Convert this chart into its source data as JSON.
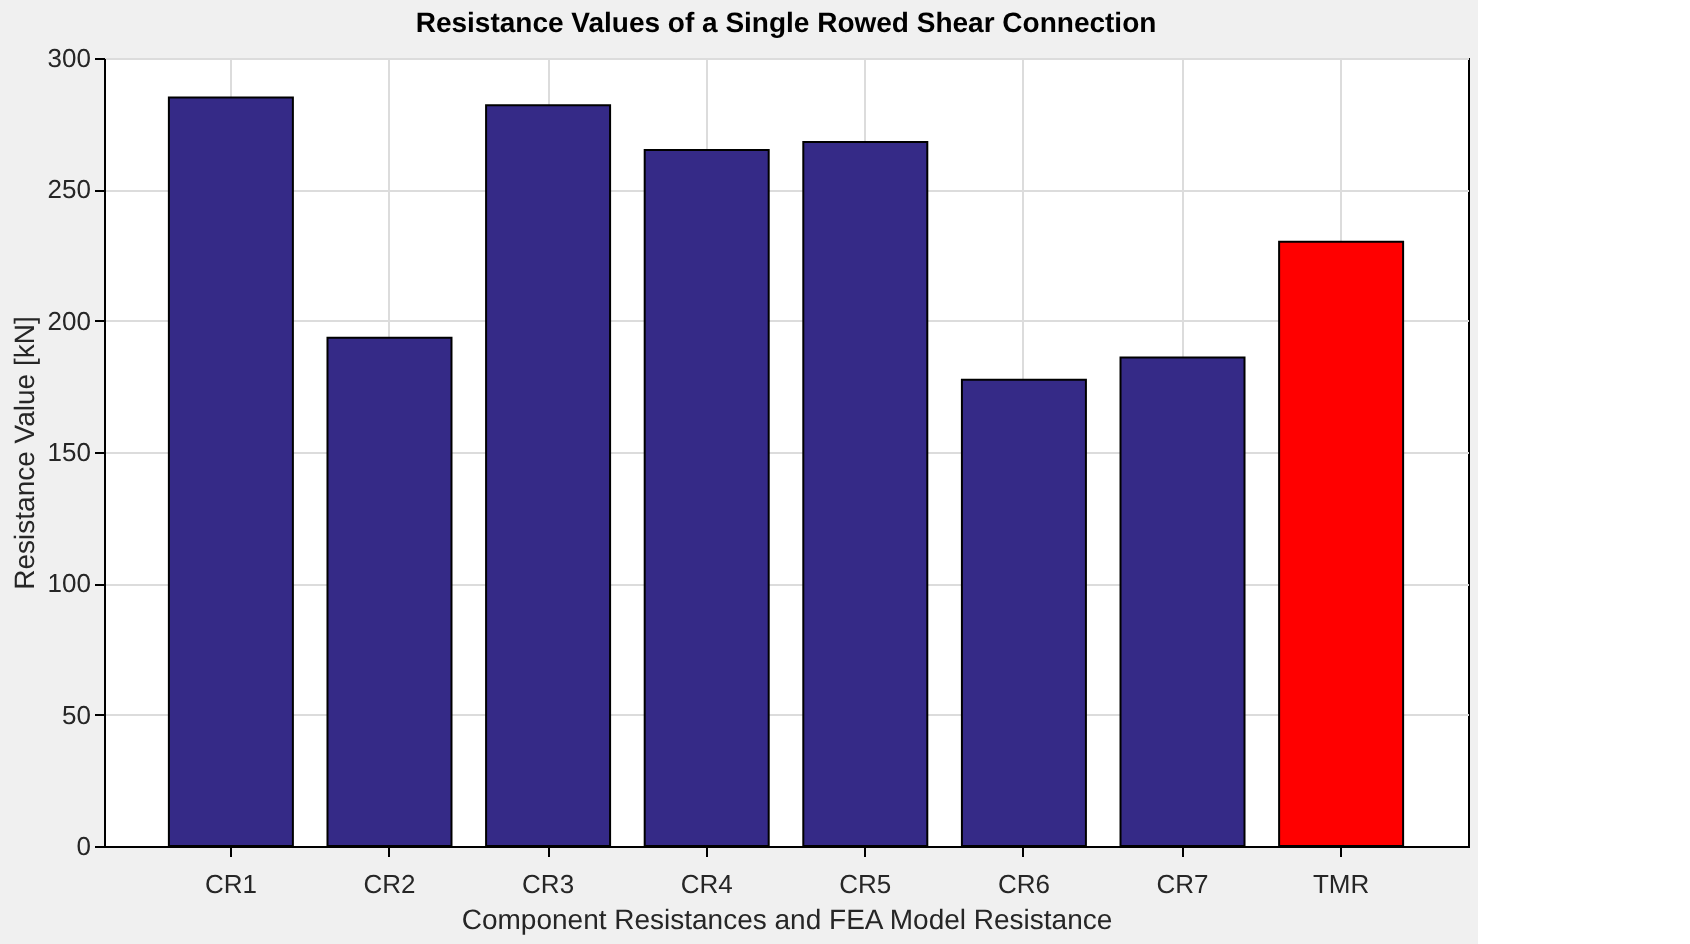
{
  "chart_data": {
    "type": "bar",
    "title": "Resistance Values of a Single Rowed Shear Connection",
    "xlabel": "Component Resistances and FEA Model Resistance",
    "ylabel": "Resistance Value [kN]",
    "categories": [
      "CR1",
      "CR2",
      "CR3",
      "CR4",
      "CR5",
      "CR6",
      "CR7",
      "TMR"
    ],
    "values": [
      285,
      193.5,
      282,
      265,
      268,
      177.5,
      186,
      230
    ],
    "colors": [
      "#352a87",
      "#352a87",
      "#352a87",
      "#352a87",
      "#352a87",
      "#352a87",
      "#352a87",
      "#ff0000"
    ],
    "ylim": [
      0,
      300
    ],
    "yticks": [
      0,
      50,
      100,
      150,
      200,
      250,
      300
    ],
    "grid": true
  }
}
